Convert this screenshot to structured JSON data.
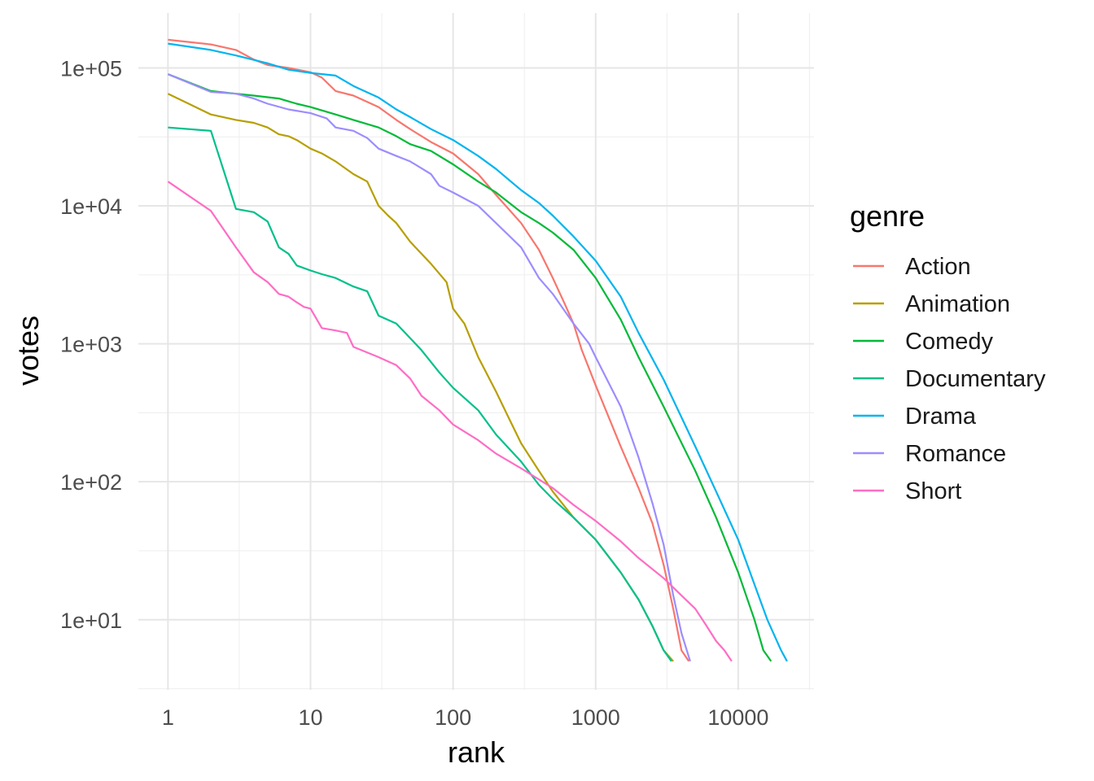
{
  "chart_data": {
    "type": "line",
    "xlabel": "rank",
    "ylabel": "votes",
    "x_scale": "log10",
    "y_scale": "log10",
    "xlim": [
      0.62,
      34000
    ],
    "ylim": [
      3.1,
      250000
    ],
    "x_ticks": [
      1,
      10,
      100,
      1000,
      10000
    ],
    "x_tick_labels": [
      "1",
      "10",
      "100",
      "1000",
      "10000"
    ],
    "y_ticks": [
      10,
      100,
      1000,
      10000,
      100000
    ],
    "y_tick_labels": [
      "1e+01",
      "1e+02",
      "1e+03",
      "1e+04",
      "1e+05"
    ],
    "grid": true,
    "legend": {
      "title": "genre",
      "position": "right"
    },
    "series": [
      {
        "name": "Action",
        "color": "#F8766D",
        "points": [
          [
            1,
            160000
          ],
          [
            2,
            148000
          ],
          [
            3,
            135000
          ],
          [
            4,
            115000
          ],
          [
            5,
            105000
          ],
          [
            7,
            100000
          ],
          [
            10,
            93000
          ],
          [
            12,
            85000
          ],
          [
            15,
            68000
          ],
          [
            20,
            63000
          ],
          [
            30,
            52000
          ],
          [
            40,
            42000
          ],
          [
            50,
            36000
          ],
          [
            70,
            29000
          ],
          [
            100,
            24000
          ],
          [
            150,
            17000
          ],
          [
            200,
            12000
          ],
          [
            300,
            7500
          ],
          [
            400,
            4800
          ],
          [
            500,
            3000
          ],
          [
            600,
            2000
          ],
          [
            700,
            1400
          ],
          [
            800,
            900
          ],
          [
            1000,
            500
          ],
          [
            1500,
            180
          ],
          [
            2000,
            90
          ],
          [
            2500,
            50
          ],
          [
            3000,
            25
          ],
          [
            3500,
            12
          ],
          [
            4000,
            6
          ],
          [
            4500,
            5
          ]
        ]
      },
      {
        "name": "Animation",
        "color": "#B79F00",
        "points": [
          [
            1,
            65000
          ],
          [
            2,
            46000
          ],
          [
            3,
            42000
          ],
          [
            4,
            40000
          ],
          [
            5,
            37000
          ],
          [
            6,
            33000
          ],
          [
            7,
            32000
          ],
          [
            8,
            30000
          ],
          [
            10,
            26000
          ],
          [
            12,
            24000
          ],
          [
            15,
            21000
          ],
          [
            20,
            17000
          ],
          [
            25,
            15000
          ],
          [
            30,
            10000
          ],
          [
            35,
            8500
          ],
          [
            40,
            7500
          ],
          [
            50,
            5500
          ],
          [
            60,
            4500
          ],
          [
            70,
            3800
          ],
          [
            90,
            2800
          ],
          [
            100,
            1800
          ],
          [
            120,
            1400
          ],
          [
            150,
            800
          ],
          [
            200,
            450
          ],
          [
            250,
            280
          ],
          [
            300,
            190
          ],
          [
            400,
            120
          ],
          [
            500,
            85
          ],
          [
            700,
            55
          ],
          [
            1000,
            38
          ],
          [
            1500,
            22
          ],
          [
            2000,
            14
          ],
          [
            2500,
            9
          ],
          [
            3000,
            6
          ],
          [
            3500,
            5
          ]
        ]
      },
      {
        "name": "Comedy",
        "color": "#00BA38",
        "points": [
          [
            1,
            90000
          ],
          [
            2,
            68000
          ],
          [
            3,
            65000
          ],
          [
            4,
            63000
          ],
          [
            6,
            60000
          ],
          [
            8,
            55000
          ],
          [
            10,
            52000
          ],
          [
            15,
            46000
          ],
          [
            20,
            42000
          ],
          [
            30,
            37000
          ],
          [
            40,
            32000
          ],
          [
            50,
            28000
          ],
          [
            70,
            25000
          ],
          [
            100,
            20000
          ],
          [
            150,
            15000
          ],
          [
            200,
            12500
          ],
          [
            300,
            9000
          ],
          [
            400,
            7500
          ],
          [
            500,
            6400
          ],
          [
            700,
            4800
          ],
          [
            1000,
            3000
          ],
          [
            1500,
            1500
          ],
          [
            2000,
            800
          ],
          [
            3000,
            350
          ],
          [
            5000,
            120
          ],
          [
            7000,
            55
          ],
          [
            10000,
            22
          ],
          [
            13000,
            10
          ],
          [
            15000,
            6
          ],
          [
            17000,
            5
          ]
        ]
      },
      {
        "name": "Documentary",
        "color": "#00C08B",
        "points": [
          [
            1,
            37000
          ],
          [
            2,
            35000
          ],
          [
            3,
            9500
          ],
          [
            4,
            9000
          ],
          [
            5,
            7700
          ],
          [
            6,
            5000
          ],
          [
            7,
            4500
          ],
          [
            8,
            3700
          ],
          [
            10,
            3400
          ],
          [
            12,
            3200
          ],
          [
            15,
            3000
          ],
          [
            20,
            2600
          ],
          [
            25,
            2400
          ],
          [
            30,
            1600
          ],
          [
            40,
            1400
          ],
          [
            50,
            1100
          ],
          [
            60,
            900
          ],
          [
            80,
            620
          ],
          [
            100,
            480
          ],
          [
            150,
            330
          ],
          [
            200,
            220
          ],
          [
            300,
            140
          ],
          [
            400,
            95
          ],
          [
            500,
            75
          ],
          [
            700,
            55
          ],
          [
            1000,
            38
          ],
          [
            1500,
            22
          ],
          [
            2000,
            14
          ],
          [
            2500,
            9
          ],
          [
            3000,
            6
          ],
          [
            3400,
            5
          ]
        ]
      },
      {
        "name": "Drama",
        "color": "#00B4EF",
        "points": [
          [
            1,
            150000
          ],
          [
            2,
            135000
          ],
          [
            3,
            123000
          ],
          [
            5,
            108000
          ],
          [
            7,
            97000
          ],
          [
            10,
            92000
          ],
          [
            15,
            88000
          ],
          [
            20,
            74000
          ],
          [
            30,
            61000
          ],
          [
            40,
            50000
          ],
          [
            50,
            44000
          ],
          [
            70,
            36000
          ],
          [
            100,
            30000
          ],
          [
            150,
            23000
          ],
          [
            200,
            18500
          ],
          [
            300,
            13000
          ],
          [
            400,
            10500
          ],
          [
            500,
            8500
          ],
          [
            700,
            6000
          ],
          [
            1000,
            4000
          ],
          [
            1500,
            2200
          ],
          [
            2000,
            1200
          ],
          [
            3000,
            550
          ],
          [
            5000,
            180
          ],
          [
            7000,
            85
          ],
          [
            10000,
            38
          ],
          [
            13000,
            18
          ],
          [
            16000,
            10
          ],
          [
            20000,
            6
          ],
          [
            22000,
            5
          ]
        ]
      },
      {
        "name": "Romance",
        "color": "#9C8DFF",
        "points": [
          [
            1,
            90000
          ],
          [
            2,
            67000
          ],
          [
            3,
            65000
          ],
          [
            4,
            60000
          ],
          [
            5,
            55000
          ],
          [
            7,
            50000
          ],
          [
            10,
            47000
          ],
          [
            13,
            43000
          ],
          [
            15,
            37000
          ],
          [
            20,
            35000
          ],
          [
            25,
            31000
          ],
          [
            30,
            26000
          ],
          [
            40,
            23000
          ],
          [
            50,
            21000
          ],
          [
            70,
            17000
          ],
          [
            80,
            14000
          ],
          [
            100,
            12500
          ],
          [
            150,
            10000
          ],
          [
            200,
            7500
          ],
          [
            300,
            5000
          ],
          [
            400,
            3000
          ],
          [
            500,
            2300
          ],
          [
            700,
            1400
          ],
          [
            900,
            1000
          ],
          [
            1000,
            800
          ],
          [
            1500,
            350
          ],
          [
            2000,
            150
          ],
          [
            2500,
            70
          ],
          [
            3000,
            35
          ],
          [
            3500,
            15
          ],
          [
            4000,
            8
          ],
          [
            4600,
            5
          ]
        ]
      },
      {
        "name": "Short",
        "color": "#FF6DC4",
        "points": [
          [
            1,
            15000
          ],
          [
            2,
            9200
          ],
          [
            3,
            5000
          ],
          [
            4,
            3300
          ],
          [
            5,
            2800
          ],
          [
            6,
            2300
          ],
          [
            7,
            2200
          ],
          [
            8,
            2000
          ],
          [
            9,
            1850
          ],
          [
            10,
            1800
          ],
          [
            12,
            1300
          ],
          [
            15,
            1250
          ],
          [
            18,
            1200
          ],
          [
            20,
            950
          ],
          [
            30,
            800
          ],
          [
            40,
            700
          ],
          [
            50,
            560
          ],
          [
            60,
            420
          ],
          [
            80,
            330
          ],
          [
            100,
            260
          ],
          [
            150,
            200
          ],
          [
            200,
            160
          ],
          [
            300,
            125
          ],
          [
            500,
            90
          ],
          [
            700,
            68
          ],
          [
            1000,
            52
          ],
          [
            1500,
            37
          ],
          [
            2000,
            28
          ],
          [
            3000,
            20
          ],
          [
            4000,
            15
          ],
          [
            5000,
            12
          ],
          [
            6000,
            9
          ],
          [
            7000,
            7
          ],
          [
            8000,
            6
          ],
          [
            9000,
            5
          ]
        ]
      }
    ]
  }
}
